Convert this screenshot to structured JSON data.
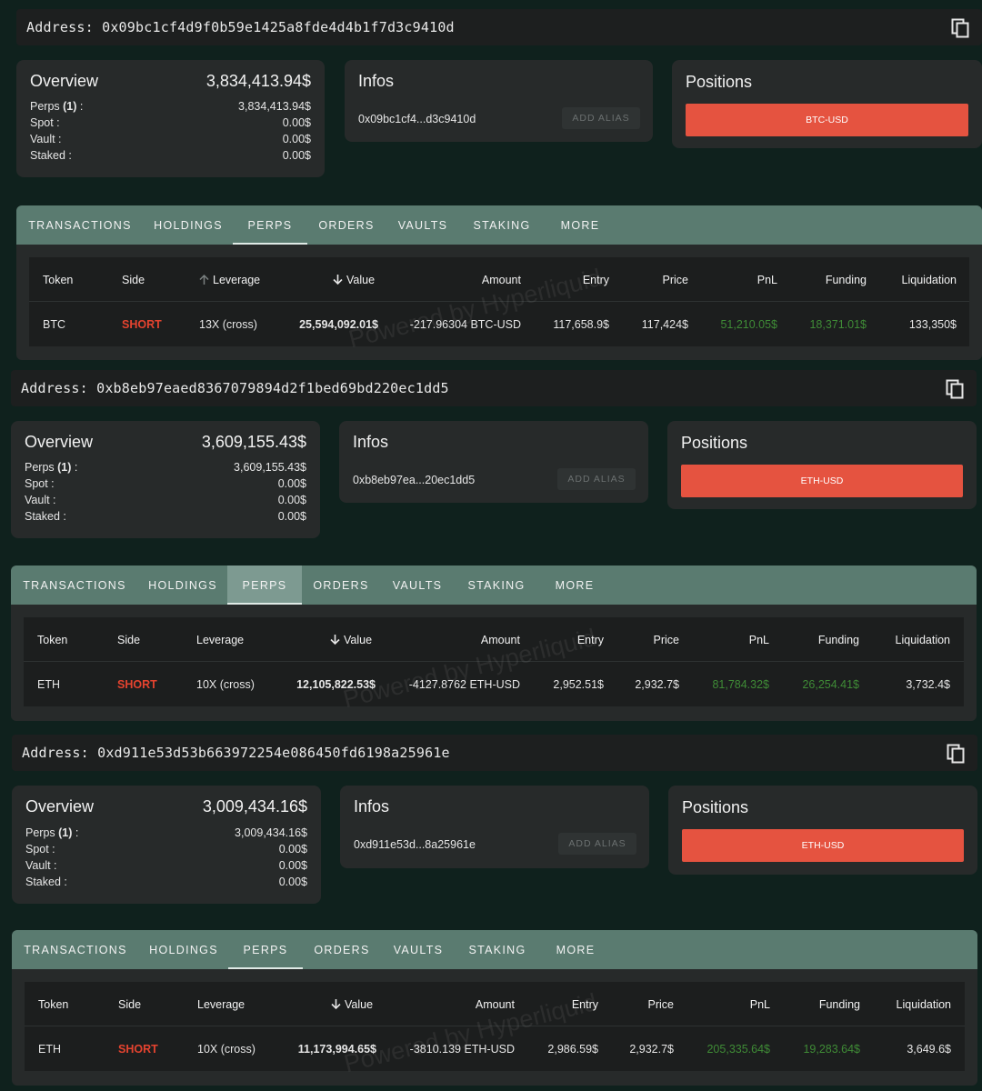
{
  "tabs": [
    "TRANSACTIONS",
    "HOLDINGS",
    "PERPS",
    "ORDERS",
    "VAULTS",
    "STAKING",
    "MORE"
  ],
  "overview": {
    "title": "Overview",
    "perps_label": "Perps",
    "perps_count": "(1)",
    "spot_label": "Spot :",
    "vault_label": "Vault :",
    "staked_label": "Staked :"
  },
  "infos_title": "Infos",
  "positions_title": "Positions",
  "alias_label": "ADD ALIAS",
  "watermark": "Powered by Hyperliquid",
  "table_headers": {
    "token": "Token",
    "side": "Side",
    "leverage": "Leverage",
    "value": "Value",
    "amount": "Amount",
    "entry": "Entry",
    "price": "Price",
    "pnl": "PnL",
    "funding": "Funding",
    "liquidation": "Liquidation"
  },
  "accounts": [
    {
      "address_label": "Address:",
      "address": "0x09bc1cf4d9f0b59e1425a8fde4d4b1f7d3c9410d",
      "overview_total": "3,834,413.94$",
      "perps": "3,834,413.94$",
      "spot": "0.00$",
      "vault": "0.00$",
      "staked": "0.00$",
      "short_address": "0x09bc1cf4...d3c9410d",
      "position": "BTC-USD",
      "row": {
        "token": "BTC",
        "side": "SHORT",
        "leverage": "13X (cross)",
        "value": "25,594,092.01$",
        "amount": "-217.96304 BTC-USD",
        "entry": "117,658.9$",
        "price": "117,424$",
        "pnl": "51,210.05$",
        "funding": "18,371.01$",
        "liquidation": "133,350$"
      }
    },
    {
      "address_label": "Address:",
      "address": "0xb8eb97eaed8367079894d2f1bed69bd220ec1dd5",
      "overview_total": "3,609,155.43$",
      "perps": "3,609,155.43$",
      "spot": "0.00$",
      "vault": "0.00$",
      "staked": "0.00$",
      "short_address": "0xb8eb97ea...20ec1dd5",
      "position": "ETH-USD",
      "row": {
        "token": "ETH",
        "side": "SHORT",
        "leverage": "10X (cross)",
        "value": "12,105,822.53$",
        "amount": "-4127.8762 ETH-USD",
        "entry": "2,952.51$",
        "price": "2,932.7$",
        "pnl": "81,784.32$",
        "funding": "26,254.41$",
        "liquidation": "3,732.4$"
      }
    },
    {
      "address_label": "Address:",
      "address": "0xd911e53d53b663972254e086450fd6198a25961e",
      "overview_total": "3,009,434.16$",
      "perps": "3,009,434.16$",
      "spot": "0.00$",
      "vault": "0.00$",
      "staked": "0.00$",
      "short_address": "0xd911e53d...8a25961e",
      "position": "ETH-USD",
      "row": {
        "token": "ETH",
        "side": "SHORT",
        "leverage": "10X (cross)",
        "value": "11,173,994.65$",
        "amount": "-3810.139 ETH-USD",
        "entry": "2,986.59$",
        "price": "2,932.7$",
        "pnl": "205,335.64$",
        "funding": "19,283.64$",
        "liquidation": "3,649.6$"
      }
    }
  ]
}
